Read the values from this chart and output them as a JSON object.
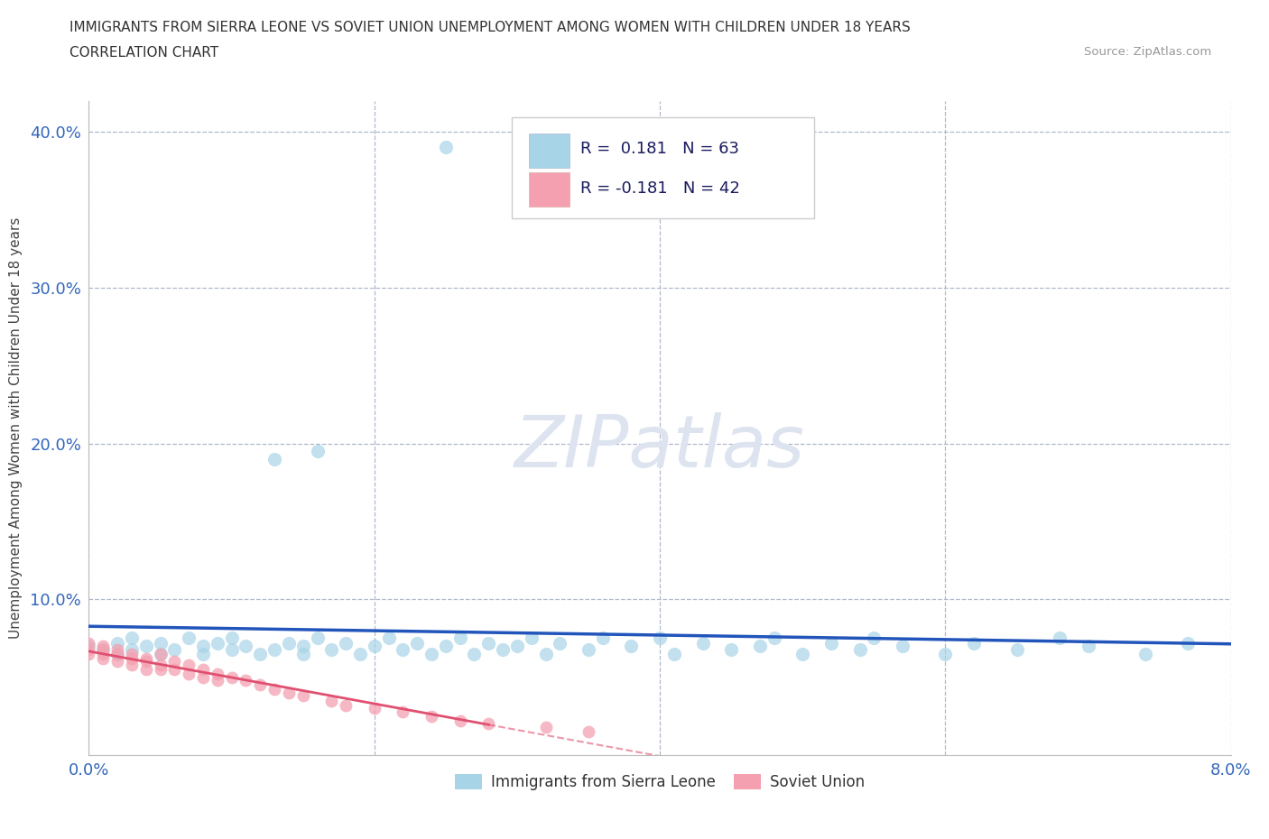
{
  "title_line1": "IMMIGRANTS FROM SIERRA LEONE VS SOVIET UNION UNEMPLOYMENT AMONG WOMEN WITH CHILDREN UNDER 18 YEARS",
  "title_line2": "CORRELATION CHART",
  "source_text": "Source: ZipAtlas.com",
  "ylabel": "Unemployment Among Women with Children Under 18 years",
  "watermark": "ZIPatlas",
  "sierra_color": "#a8d4e8",
  "soviet_color": "#f4a0b0",
  "sierra_line_color": "#2255bb",
  "soviet_line_color": "#e05070",
  "grid_color": "#b0b8cc",
  "background_color": "#ffffff",
  "watermark_color": "#dde4f0",
  "xlim": [
    0.0,
    0.08
  ],
  "ylim": [
    0.0,
    0.42
  ],
  "ygrid_vals": [
    0.1,
    0.2,
    0.3,
    0.4
  ],
  "xgrid_vals": [
    0.0,
    0.02,
    0.04,
    0.06,
    0.08
  ]
}
